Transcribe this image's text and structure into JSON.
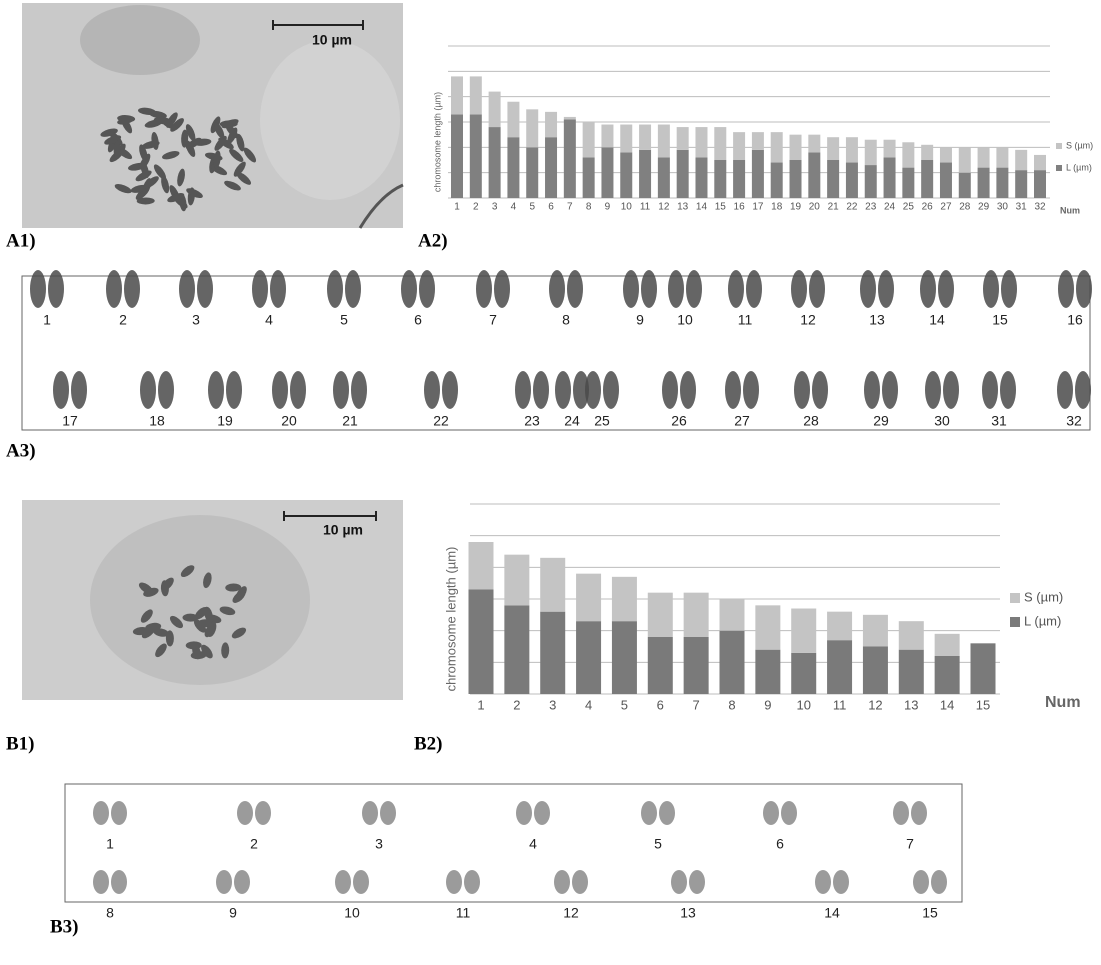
{
  "chart_data": [
    {
      "type": "bar",
      "stacked": true,
      "y_label": "chromosome length (µm)",
      "x_label": "Num",
      "categories": [
        "1",
        "2",
        "3",
        "4",
        "5",
        "6",
        "7",
        "8",
        "9",
        "10",
        "11",
        "12",
        "13",
        "14",
        "15",
        "16",
        "17",
        "18",
        "19",
        "20",
        "21",
        "22",
        "23",
        "24",
        "25",
        "26",
        "27",
        "28",
        "29",
        "30",
        "31",
        "32"
      ],
      "series": [
        {
          "name": "L (µm)",
          "color": "#808080",
          "values": [
            3.3,
            3.3,
            2.8,
            2.4,
            2.0,
            2.4,
            3.1,
            1.6,
            2.0,
            1.8,
            1.9,
            1.6,
            1.9,
            1.6,
            1.5,
            1.5,
            1.9,
            1.4,
            1.5,
            1.8,
            1.5,
            1.4,
            1.3,
            1.6,
            1.2,
            1.5,
            1.4,
            1.0,
            1.2,
            1.2,
            1.1,
            1.1
          ]
        },
        {
          "name": "S (µm)",
          "color": "#c4c4c4",
          "values": [
            1.5,
            1.5,
            1.4,
            1.4,
            1.5,
            1.0,
            0.1,
            1.4,
            0.9,
            1.1,
            1.0,
            1.3,
            0.9,
            1.2,
            1.3,
            1.1,
            0.7,
            1.2,
            1.0,
            0.7,
            0.9,
            1.0,
            1.0,
            0.7,
            1.0,
            0.6,
            0.6,
            1.0,
            0.8,
            0.8,
            0.8,
            0.6
          ]
        }
      ],
      "ylim": [
        0,
        6
      ],
      "yticks": [
        0,
        1,
        2,
        3,
        4,
        5,
        6
      ],
      "grid": true,
      "legend": "right"
    },
    {
      "type": "bar",
      "stacked": true,
      "y_label": "chromosome length (µm)",
      "x_label": "Num",
      "categories": [
        "1",
        "2",
        "3",
        "4",
        "5",
        "6",
        "7",
        "8",
        "9",
        "10",
        "11",
        "12",
        "13",
        "14",
        "15"
      ],
      "series": [
        {
          "name": "L (µm)",
          "color": "#7a7a7a",
          "values": [
            3.3,
            2.8,
            2.6,
            2.3,
            2.3,
            1.8,
            1.8,
            2.0,
            1.4,
            1.3,
            1.7,
            1.5,
            1.4,
            1.2,
            1.6
          ]
        },
        {
          "name": "S (µm)",
          "color": "#c4c4c4",
          "values": [
            1.5,
            1.6,
            1.7,
            1.5,
            1.4,
            1.4,
            1.4,
            1.0,
            1.4,
            1.4,
            0.9,
            1.0,
            0.9,
            0.7,
            0
          ]
        }
      ],
      "ylim": [
        0,
        6
      ],
      "yticks": [
        0,
        1,
        2,
        3,
        4,
        5,
        6
      ],
      "grid": true,
      "legend": "right"
    }
  ],
  "figure": {
    "a1": {
      "label": "A1)",
      "scale_bar": "10 µm"
    },
    "a2": {
      "label": "A2)"
    },
    "a3": {
      "label": "A3)",
      "numbers": [
        "1",
        "2",
        "3",
        "4",
        "5",
        "6",
        "7",
        "8",
        "9",
        "10",
        "11",
        "12",
        "13",
        "14",
        "15",
        "16",
        "17",
        "18",
        "19",
        "20",
        "21",
        "22",
        "23",
        "24",
        "25",
        "26",
        "27",
        "28",
        "29",
        "30",
        "31",
        "32"
      ]
    },
    "b1": {
      "label": "B1)",
      "scale_bar": "10 µm"
    },
    "b2": {
      "label": "B2)"
    },
    "b3": {
      "label": "B3)",
      "numbers": [
        "1",
        "2",
        "3",
        "4",
        "5",
        "6",
        "7",
        "8",
        "9",
        "10",
        "11",
        "12",
        "13",
        "14",
        "15"
      ]
    }
  }
}
